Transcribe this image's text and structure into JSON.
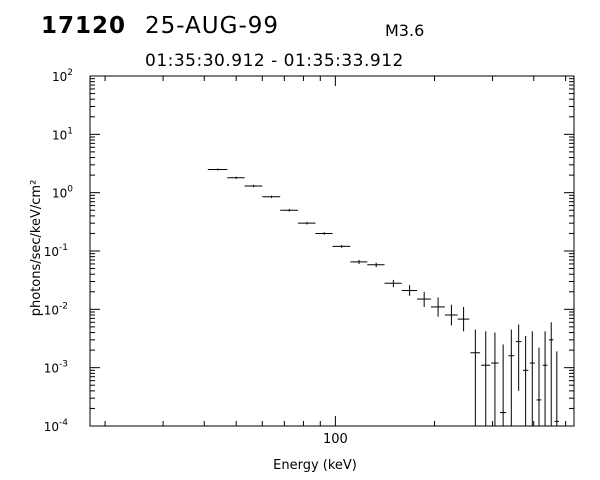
{
  "header": {
    "event_id": "17120",
    "date": "25-AUG-99",
    "flare_class": "M3.6",
    "time_range": "01:35:30.912 - 01:35:33.912"
  },
  "chart_data": {
    "type": "scatter",
    "title": "",
    "xlabel": "Energy (keV)",
    "ylabel": "photons/sec/keV/cm²",
    "x_scale": "log",
    "y_scale": "log",
    "xlim": [
      18,
      530
    ],
    "ylim": [
      0.0001,
      100
    ],
    "x_ticks": [
      {
        "value": 100,
        "label": "100"
      }
    ],
    "y_ticks": [
      {
        "value": 100,
        "base": "10",
        "exp": "2"
      },
      {
        "value": 10,
        "base": "10",
        "exp": "1"
      },
      {
        "value": 1,
        "base": "10",
        "exp": "0"
      },
      {
        "value": 0.1,
        "base": "10",
        "exp": "-1"
      },
      {
        "value": 0.01,
        "base": "10",
        "exp": "-2"
      },
      {
        "value": 0.001,
        "base": "10",
        "exp": "-3"
      },
      {
        "value": 0.0001,
        "base": "10",
        "exp": "-4"
      }
    ],
    "series": [
      {
        "points": [
          {
            "x": 44.0,
            "xlo": 41.0,
            "xhi": 47.0,
            "y": 2.5,
            "ylo": 2.4,
            "yhi": 2.6
          },
          {
            "x": 50.0,
            "xlo": 47.0,
            "xhi": 53.0,
            "y": 1.8,
            "ylo": 1.72,
            "yhi": 1.88
          },
          {
            "x": 56.5,
            "xlo": 53.0,
            "xhi": 60.0,
            "y": 1.3,
            "ylo": 1.24,
            "yhi": 1.36
          },
          {
            "x": 64.0,
            "xlo": 60.0,
            "xhi": 68.0,
            "y": 0.85,
            "ylo": 0.81,
            "yhi": 0.89
          },
          {
            "x": 72.5,
            "xlo": 68.0,
            "xhi": 77.0,
            "y": 0.5,
            "ylo": 0.475,
            "yhi": 0.525
          },
          {
            "x": 82.0,
            "xlo": 77.0,
            "xhi": 87.0,
            "y": 0.3,
            "ylo": 0.285,
            "yhi": 0.315
          },
          {
            "x": 92.5,
            "xlo": 87.0,
            "xhi": 98.0,
            "y": 0.2,
            "ylo": 0.19,
            "yhi": 0.21
          },
          {
            "x": 104.5,
            "xlo": 98.0,
            "xhi": 111.0,
            "y": 0.12,
            "ylo": 0.113,
            "yhi": 0.127
          },
          {
            "x": 118.0,
            "xlo": 111.0,
            "xhi": 125.0,
            "y": 0.065,
            "ylo": 0.06,
            "yhi": 0.07
          },
          {
            "x": 133.0,
            "xlo": 125.0,
            "xhi": 141.0,
            "y": 0.058,
            "ylo": 0.053,
            "yhi": 0.063
          },
          {
            "x": 150.0,
            "xlo": 141.0,
            "xhi": 159.0,
            "y": 0.028,
            "ylo": 0.024,
            "yhi": 0.032
          },
          {
            "x": 168.0,
            "xlo": 159.0,
            "xhi": 177.0,
            "y": 0.021,
            "ylo": 0.017,
            "yhi": 0.026
          },
          {
            "x": 186.0,
            "xlo": 177.0,
            "xhi": 195.0,
            "y": 0.015,
            "ylo": 0.011,
            "yhi": 0.02
          },
          {
            "x": 205.0,
            "xlo": 195.0,
            "xhi": 215.0,
            "y": 0.011,
            "ylo": 0.0075,
            "yhi": 0.016
          },
          {
            "x": 225.0,
            "xlo": 215.0,
            "xhi": 235.0,
            "y": 0.008,
            "ylo": 0.0053,
            "yhi": 0.012
          },
          {
            "x": 245.0,
            "xlo": 235.0,
            "xhi": 255.0,
            "y": 0.0068,
            "ylo": 0.0042,
            "yhi": 0.011
          },
          {
            "x": 266.0,
            "xlo": 257.0,
            "xhi": 275.0,
            "y": 0.0018,
            "ylo": 0.0001,
            "yhi": 0.0045
          },
          {
            "x": 286.0,
            "xlo": 277.0,
            "xhi": 295.0,
            "y": 0.0011,
            "ylo": 0.0001,
            "yhi": 0.0042
          },
          {
            "x": 305.0,
            "xlo": 297.0,
            "xhi": 313.0,
            "y": 0.0012,
            "ylo": 0.0001,
            "yhi": 0.004
          },
          {
            "x": 323.0,
            "xlo": 316.0,
            "xhi": 330.0,
            "y": 0.00017,
            "ylo": 0.0001,
            "yhi": 0.0025
          },
          {
            "x": 342.0,
            "xlo": 335.0,
            "xhi": 349.0,
            "y": 0.0016,
            "ylo": 0.0001,
            "yhi": 0.0045
          },
          {
            "x": 360.0,
            "xlo": 353.0,
            "xhi": 367.0,
            "y": 0.0028,
            "ylo": 0.0004,
            "yhi": 0.0055
          },
          {
            "x": 378.0,
            "xlo": 371.0,
            "xhi": 385.0,
            "y": 0.0009,
            "ylo": 0.0001,
            "yhi": 0.0035
          },
          {
            "x": 396.0,
            "xlo": 389.0,
            "xhi": 403.0,
            "y": 0.0012,
            "ylo": 0.0001,
            "yhi": 0.0042
          },
          {
            "x": 415.0,
            "xlo": 408.0,
            "xhi": 422.0,
            "y": 0.00028,
            "ylo": 0.0001,
            "yhi": 0.0022
          },
          {
            "x": 433.0,
            "xlo": 426.0,
            "xhi": 440.0,
            "y": 0.0011,
            "ylo": 0.0001,
            "yhi": 0.0042
          },
          {
            "x": 452.0,
            "xlo": 445.0,
            "xhi": 459.0,
            "y": 0.003,
            "ylo": 0.0001,
            "yhi": 0.006
          },
          {
            "x": 470.0,
            "xlo": 463.0,
            "xhi": 477.0,
            "y": 0.00012,
            "ylo": 0.0001,
            "yhi": 0.0019
          }
        ]
      }
    ]
  }
}
